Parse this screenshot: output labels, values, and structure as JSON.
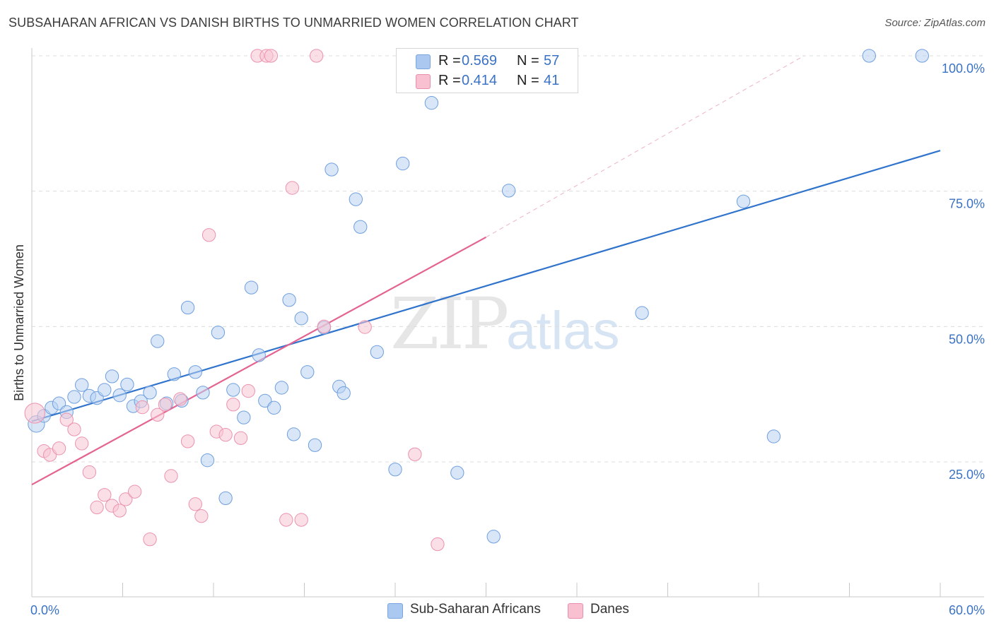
{
  "title": "SUBSAHARAN AFRICAN VS DANISH BIRTHS TO UNMARRIED WOMEN CORRELATION CHART",
  "source": "Source: ZipAtlas.com",
  "watermark": {
    "zip": "ZIP",
    "atlas": "atlas"
  },
  "legend": {
    "rows": [
      {
        "r_label": "R =",
        "r_value": "0.569",
        "n_label": "N =",
        "n_value": "57",
        "color": "#aac8f0",
        "border": "#7aa6dd"
      },
      {
        "r_label": "R =",
        "r_value": "0.414",
        "n_label": "N =",
        "n_value": "41",
        "color": "#f8c0d0",
        "border": "#e98fab"
      }
    ]
  },
  "bottom_legend": [
    {
      "label": "Sub-Saharan Africans",
      "color": "#aac8f0",
      "border": "#7aa6dd"
    },
    {
      "label": "Danes",
      "color": "#f8c0d0",
      "border": "#e98fab"
    }
  ],
  "chart_data": {
    "type": "scatter",
    "title": "SUBSAHARAN AFRICAN VS DANISH BIRTHS TO UNMARRIED WOMEN CORRELATION CHART",
    "xlabel": "",
    "ylabel": "Births to Unmarried Women",
    "xlim": [
      0,
      60
    ],
    "ylim": [
      0,
      100
    ],
    "x_tick_labels": [
      "0.0%",
      "60.0%"
    ],
    "y_ticks": [
      25,
      50,
      75,
      100
    ],
    "y_tick_labels": [
      "25.0%",
      "50.0%",
      "75.0%",
      "100.0%"
    ],
    "grid": true,
    "legend_position": "top-center",
    "series": [
      {
        "name": "Sub-Saharan Africans",
        "color": "#6f9fde",
        "fill": "#b8d1f2",
        "trend": {
          "x": [
            0,
            60
          ],
          "y": [
            32.5,
            82.5
          ],
          "color": "#2f73cc"
        },
        "points": [
          [
            0.3,
            32.0,
            14
          ],
          [
            0.8,
            33.5,
            11
          ],
          [
            1.3,
            35.0,
            11
          ],
          [
            1.8,
            35.8,
            11
          ],
          [
            2.3,
            34.2,
            11
          ],
          [
            2.8,
            37.0,
            11
          ],
          [
            3.3,
            39.2,
            11
          ],
          [
            3.8,
            37.2,
            11
          ],
          [
            4.3,
            36.8,
            11
          ],
          [
            4.8,
            38.3,
            11
          ],
          [
            5.3,
            40.8,
            11
          ],
          [
            5.8,
            37.3,
            11
          ],
          [
            6.3,
            39.3,
            11
          ],
          [
            6.7,
            35.3,
            11
          ],
          [
            7.2,
            36.2,
            11
          ],
          [
            7.8,
            37.8,
            11
          ],
          [
            8.3,
            47.3,
            11
          ],
          [
            8.9,
            35.8,
            11
          ],
          [
            9.4,
            41.2,
            11
          ],
          [
            9.9,
            36.3,
            11
          ],
          [
            10.3,
            53.5,
            11
          ],
          [
            10.8,
            41.6,
            11
          ],
          [
            11.3,
            37.8,
            11
          ],
          [
            11.6,
            25.3,
            11
          ],
          [
            12.3,
            48.9,
            11
          ],
          [
            12.8,
            18.3,
            11
          ],
          [
            13.3,
            38.3,
            11
          ],
          [
            14.0,
            33.2,
            11
          ],
          [
            14.5,
            57.2,
            11
          ],
          [
            15.0,
            44.7,
            11
          ],
          [
            15.4,
            36.3,
            11
          ],
          [
            16.0,
            35.0,
            11
          ],
          [
            16.5,
            38.7,
            11
          ],
          [
            17.0,
            54.9,
            11
          ],
          [
            17.3,
            30.1,
            11
          ],
          [
            17.8,
            51.5,
            11
          ],
          [
            18.2,
            41.6,
            11
          ],
          [
            18.7,
            28.1,
            11
          ],
          [
            19.3,
            49.8,
            11
          ],
          [
            19.8,
            79.0,
            11
          ],
          [
            20.3,
            38.9,
            11
          ],
          [
            20.6,
            37.7,
            11
          ],
          [
            21.4,
            73.5,
            11
          ],
          [
            21.7,
            68.4,
            11
          ],
          [
            22.8,
            45.3,
            11
          ],
          [
            24.0,
            23.6,
            11
          ],
          [
            24.5,
            80.1,
            11
          ],
          [
            26.4,
            91.3,
            11
          ],
          [
            28.1,
            23.0,
            11
          ],
          [
            30.5,
            11.2,
            11
          ],
          [
            31.5,
            75.1,
            11
          ],
          [
            35.3,
            100.0,
            11
          ],
          [
            40.3,
            52.5,
            11
          ],
          [
            47.0,
            73.1,
            11
          ],
          [
            49.0,
            29.7,
            11
          ],
          [
            55.3,
            100.0,
            11
          ],
          [
            58.8,
            100.0,
            11
          ]
        ]
      },
      {
        "name": "Danes",
        "color": "#ec92ae",
        "fill": "#f8c4d3",
        "trend": {
          "x": [
            0,
            30
          ],
          "y": [
            20.8,
            66.5
          ],
          "color": "#e46390"
        },
        "trend_extension": {
          "x": [
            30,
            51
          ],
          "y": [
            66.5,
            100.0
          ]
        },
        "points": [
          [
            0.2,
            34.0,
            17
          ],
          [
            0.8,
            27.0,
            11
          ],
          [
            1.2,
            26.3,
            11
          ],
          [
            1.8,
            27.5,
            11
          ],
          [
            2.3,
            32.8,
            11
          ],
          [
            2.8,
            31.0,
            11
          ],
          [
            3.3,
            28.4,
            11
          ],
          [
            3.8,
            23.1,
            11
          ],
          [
            4.3,
            16.6,
            11
          ],
          [
            4.8,
            18.9,
            11
          ],
          [
            5.3,
            16.9,
            11
          ],
          [
            5.8,
            16.0,
            11
          ],
          [
            6.2,
            18.1,
            11
          ],
          [
            6.8,
            19.5,
            11
          ],
          [
            7.3,
            35.1,
            11
          ],
          [
            7.8,
            10.7,
            11
          ],
          [
            8.3,
            33.7,
            11
          ],
          [
            8.8,
            35.6,
            11
          ],
          [
            9.2,
            22.4,
            11
          ],
          [
            9.8,
            36.6,
            11
          ],
          [
            10.3,
            28.8,
            11
          ],
          [
            10.8,
            17.2,
            11
          ],
          [
            11.2,
            15.0,
            11
          ],
          [
            11.7,
            66.9,
            11
          ],
          [
            12.2,
            30.6,
            11
          ],
          [
            12.8,
            30.0,
            11
          ],
          [
            13.3,
            35.6,
            11
          ],
          [
            13.8,
            29.4,
            11
          ],
          [
            14.3,
            38.1,
            11
          ],
          [
            14.9,
            100.0,
            11
          ],
          [
            15.5,
            100.0,
            11
          ],
          [
            15.8,
            100.0,
            11
          ],
          [
            16.8,
            14.3,
            11
          ],
          [
            17.2,
            75.6,
            11
          ],
          [
            17.8,
            14.3,
            11
          ],
          [
            18.8,
            100.0,
            11
          ],
          [
            19.3,
            50.0,
            11
          ],
          [
            22.0,
            49.9,
            11
          ],
          [
            25.3,
            26.4,
            11
          ],
          [
            26.8,
            9.8,
            11
          ],
          [
            28.2,
            100.0,
            11
          ]
        ]
      }
    ]
  }
}
